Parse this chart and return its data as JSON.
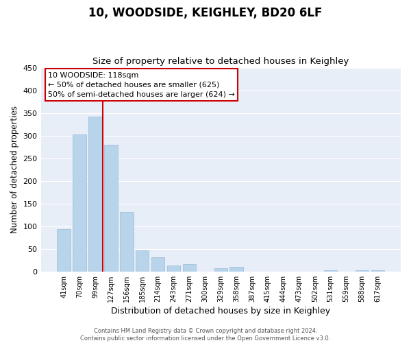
{
  "title": "10, WOODSIDE, KEIGHLEY, BD20 6LF",
  "subtitle": "Size of property relative to detached houses in Keighley",
  "xlabel": "Distribution of detached houses by size in Keighley",
  "ylabel": "Number of detached properties",
  "bar_labels": [
    "41sqm",
    "70sqm",
    "99sqm",
    "127sqm",
    "156sqm",
    "185sqm",
    "214sqm",
    "243sqm",
    "271sqm",
    "300sqm",
    "329sqm",
    "358sqm",
    "387sqm",
    "415sqm",
    "444sqm",
    "473sqm",
    "502sqm",
    "531sqm",
    "559sqm",
    "588sqm",
    "617sqm"
  ],
  "bar_values": [
    93,
    303,
    342,
    280,
    132,
    47,
    31,
    13,
    16,
    0,
    8,
    10,
    0,
    0,
    0,
    0,
    0,
    3,
    0,
    2,
    2
  ],
  "bar_color": "#b8d4ea",
  "bar_edge_color": "#9abbd8",
  "vline_x_index": 2.72,
  "vline_color": "#cc0000",
  "ylim": [
    0,
    450
  ],
  "yticks": [
    0,
    50,
    100,
    150,
    200,
    250,
    300,
    350,
    400,
    450
  ],
  "annotation_title": "10 WOODSIDE: 118sqm",
  "annotation_line1": "← 50% of detached houses are smaller (625)",
  "annotation_line2": "50% of semi-detached houses are larger (624) →",
  "annotation_box_color": "#ffffff",
  "annotation_box_edge": "#cc0000",
  "footer1": "Contains HM Land Registry data © Crown copyright and database right 2024.",
  "footer2": "Contains public sector information licensed under the Open Government Licence v3.0.",
  "bg_color": "#e8eef8",
  "fig_bg_color": "#ffffff",
  "grid_color": "#ffffff"
}
